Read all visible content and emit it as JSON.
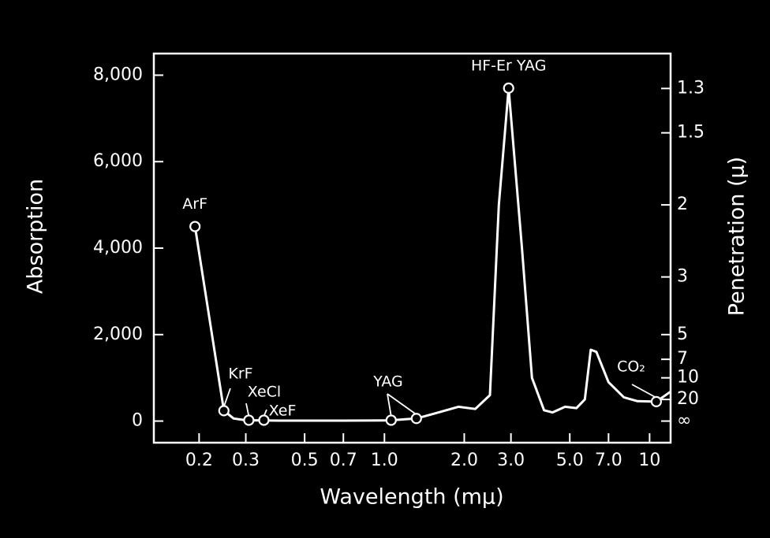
{
  "chart_data": {
    "type": "line",
    "x_label": "Wavelength (mμ)",
    "y_label": "Absorption",
    "y2_label": "Penetration (μ)",
    "xscale": "log",
    "xlim": [
      0.135,
      12
    ],
    "xticks": [
      0.2,
      0.3,
      0.5,
      0.7,
      {
        "value": 1,
        "label": "1.0"
      },
      {
        "value": 2,
        "label": "2.0"
      },
      {
        "value": 3,
        "label": "3.0"
      },
      {
        "value": 5,
        "label": "5.0"
      },
      {
        "value": 7,
        "label": "7.0"
      },
      {
        "value": 10,
        "label": "10"
      }
    ],
    "ylim": [
      -500,
      8500
    ],
    "yticks": [
      0,
      {
        "value": 2000,
        "label": "2,000"
      },
      {
        "value": 4000,
        "label": "4,000"
      },
      {
        "value": 6000,
        "label": "6,000"
      },
      {
        "value": 8000,
        "label": "8,000"
      }
    ],
    "y2scale": "reciprocal",
    "y2_factor": 10000,
    "y2ticks": [
      1.3,
      1.5,
      2,
      3,
      5,
      7,
      10,
      20,
      {
        "value": null,
        "label": "∞"
      }
    ],
    "color": "#ffffff",
    "x": [
      0.193,
      0.248,
      0.27,
      0.3,
      0.4,
      0.7,
      1.0,
      1.06,
      1.32,
      1.6,
      1.9,
      2.2,
      2.5,
      2.7,
      2.94,
      3.3,
      3.6,
      4.0,
      4.3,
      4.8,
      5.3,
      5.7,
      6.0,
      6.3,
      7.0,
      8.0,
      9.0,
      10.6,
      12
    ],
    "values": [
      4500,
      240,
      60,
      20,
      10,
      10,
      15,
      20,
      60,
      200,
      330,
      280,
      600,
      5000,
      7700,
      4000,
      1000,
      250,
      200,
      330,
      300,
      500,
      1650,
      1600,
      900,
      550,
      460,
      450,
      680
    ],
    "lasers": [
      {
        "name": "ArF",
        "x": [
          0.193
        ],
        "values": [
          4500
        ]
      },
      {
        "name": "KrF",
        "x": [
          0.248
        ],
        "values": [
          240
        ]
      },
      {
        "name": "XeCl",
        "x": [
          0.308
        ],
        "values": [
          20
        ]
      },
      {
        "name": "XeF",
        "x": [
          0.351
        ],
        "values": [
          20
        ]
      },
      {
        "name": "YAG",
        "x": [
          1.06,
          1.32
        ],
        "values": [
          20,
          60
        ]
      },
      {
        "name": "HF-Er YAG",
        "x": [
          2.94
        ],
        "values": [
          7700
        ]
      },
      {
        "name": "CO₂",
        "x": [
          10.6
        ],
        "values": [
          450
        ]
      }
    ]
  }
}
